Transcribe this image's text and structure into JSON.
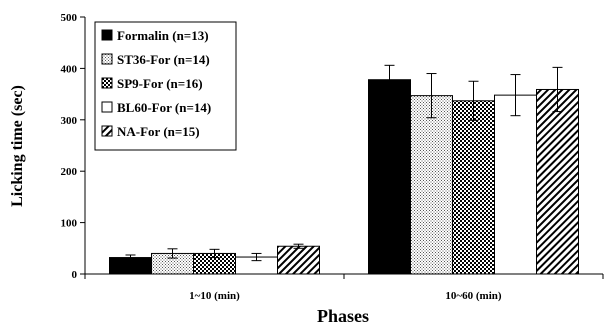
{
  "chart_data": {
    "type": "bar",
    "xlabel": "Phases",
    "ylabel": "Licking time (sec)",
    "ylim": [
      0,
      500
    ],
    "yticks": [
      "0",
      "100",
      "200",
      "300",
      "400",
      "500"
    ],
    "categories": [
      "1~10 (min)",
      "10~60 (min)"
    ],
    "grid": false,
    "legend_position": "top-left",
    "series": [
      {
        "name": "Formalin (n=13)",
        "pattern": "solid-black",
        "values": [
          32,
          378
        ],
        "errors": [
          5,
          28
        ]
      },
      {
        "name": "ST36-For (n=14)",
        "pattern": "fine-dots",
        "values": [
          40,
          347
        ],
        "errors": [
          9,
          43
        ]
      },
      {
        "name": "SP9-For (n=16)",
        "pattern": "checker",
        "values": [
          40,
          337
        ],
        "errors": [
          8,
          38
        ]
      },
      {
        "name": "BL60-For (n=14)",
        "pattern": "white",
        "values": [
          33,
          348
        ],
        "errors": [
          7,
          40
        ]
      },
      {
        "name": "NA-For (n=15)",
        "pattern": "diagonal",
        "values": [
          54,
          359
        ],
        "errors": [
          4,
          43
        ]
      }
    ]
  }
}
